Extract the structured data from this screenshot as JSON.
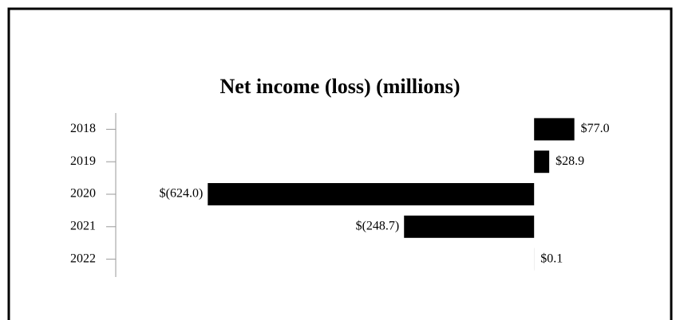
{
  "chart_data": {
    "type": "hbar",
    "title": "Net income (loss) (millions)",
    "categories": [
      "2018",
      "2019",
      "2020",
      "2021",
      "2022"
    ],
    "values": [
      77.0,
      28.9,
      -624.0,
      -248.7,
      0.1
    ],
    "value_labels": [
      "$77.0",
      "$28.9",
      "$(624.0)",
      "$(248.7)",
      "$0.1"
    ],
    "color": "#000000",
    "xlim": [
      -800,
      250
    ]
  }
}
